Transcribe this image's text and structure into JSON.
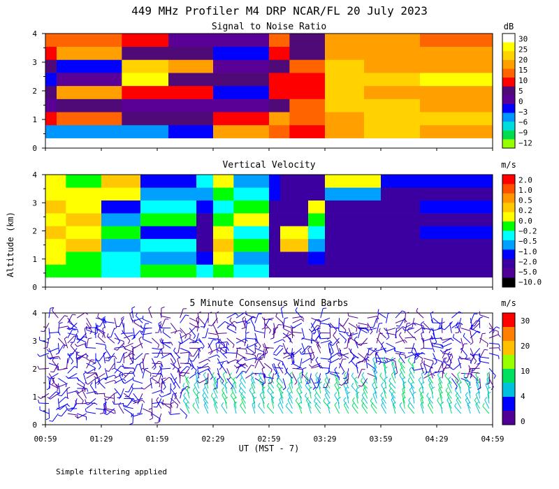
{
  "figure": {
    "title": "449 MHz Profiler M4 DRP NCAR/FL 20 July 2023",
    "ylabel": "Altitude (km)",
    "xlabel": "UT  (MST - 7)",
    "footnote": "Simple filtering applied",
    "time_ticks": [
      "00:59",
      "01:29",
      "01:59",
      "02:29",
      "02:59",
      "03:29",
      "03:59",
      "04:29",
      "04:59"
    ],
    "alt_ticks": [
      "0",
      "1",
      "2",
      "3",
      "4"
    ]
  },
  "chart_data": [
    {
      "type": "heatmap",
      "title": "Signal to Noise Ratio",
      "xlim": [
        "00:59",
        "04:59"
      ],
      "ylim": [
        0,
        4
      ],
      "colorbar": {
        "unit": "dB",
        "labels": [
          "30",
          "25",
          "20",
          "15",
          "10",
          "5",
          "0",
          "−3",
          "−6",
          "−9",
          "−12"
        ],
        "colors": [
          "#ffffff",
          "#ffff00",
          "#ffd200",
          "#ffa000",
          "#ff6400",
          "#ff0000",
          "#500a78",
          "#5a0096",
          "#0000ff",
          "#0096ff",
          "#00dcdc",
          "#00dc50",
          "#96ff00"
        ]
      },
      "bands": [
        {
          "from": "00:59",
          "to": "01:05",
          "levels": [
            9,
            5,
            7,
            6,
            8,
            6,
            5,
            4
          ]
        },
        {
          "from": "01:05",
          "to": "01:40",
          "levels": [
            9,
            4,
            6,
            3,
            7,
            8,
            3,
            4
          ]
        },
        {
          "from": "01:40",
          "to": "02:05",
          "levels": [
            9,
            6,
            7,
            5,
            1,
            2,
            6,
            5
          ]
        },
        {
          "from": "02:05",
          "to": "02:29",
          "levels": [
            8,
            6,
            7,
            5,
            6,
            3,
            6,
            7
          ]
        },
        {
          "from": "02:29",
          "to": "02:59",
          "levels": [
            3,
            5,
            7,
            8,
            6,
            7,
            8,
            7
          ]
        },
        {
          "from": "02:59",
          "to": "03:10",
          "levels": [
            4,
            3,
            6,
            5,
            5,
            6,
            5,
            4
          ]
        },
        {
          "from": "03:10",
          "to": "03:29",
          "levels": [
            5,
            4,
            4,
            5,
            5,
            4,
            6,
            6
          ]
        },
        {
          "from": "03:29",
          "to": "03:50",
          "levels": [
            3,
            3,
            2,
            2,
            2,
            2,
            3,
            3
          ]
        },
        {
          "from": "03:50",
          "to": "04:20",
          "levels": [
            2,
            2,
            2,
            3,
            2,
            3,
            3,
            3
          ]
        },
        {
          "from": "04:20",
          "to": "04:59",
          "levels": [
            3,
            2,
            3,
            3,
            1,
            3,
            3,
            4
          ]
        }
      ]
    },
    {
      "type": "heatmap",
      "title": "Vertical Velocity",
      "xlim": [
        "00:59",
        "04:59"
      ],
      "ylim": [
        0,
        4
      ],
      "colorbar": {
        "unit": "m/s",
        "labels": [
          "2.0",
          "1.0",
          "0.5",
          "0.2",
          "0.0",
          "−0.2",
          "−0.5",
          "−1.0",
          "−2.0",
          "−5.0",
          "−10.0"
        ],
        "colors": [
          "#ff0000",
          "#ff5000",
          "#ff9600",
          "#ffc800",
          "#ffff00",
          "#00ff00",
          "#00ffff",
          "#00a0ff",
          "#0000ff",
          "#3c00a0",
          "#500096",
          "#000000"
        ]
      },
      "bands": [
        {
          "from": "00:59",
          "to": "01:10",
          "levels": [
            5,
            4,
            4,
            3,
            4,
            3,
            4,
            4
          ]
        },
        {
          "from": "01:10",
          "to": "01:29",
          "levels": [
            5,
            5,
            3,
            4,
            3,
            4,
            4,
            5
          ]
        },
        {
          "from": "01:29",
          "to": "01:50",
          "levels": [
            6,
            6,
            7,
            5,
            7,
            8,
            4,
            3
          ]
        },
        {
          "from": "01:50",
          "to": "02:20",
          "levels": [
            5,
            7,
            6,
            8,
            5,
            6,
            7,
            8
          ]
        },
        {
          "from": "02:20",
          "to": "02:29",
          "levels": [
            6,
            8,
            9,
            9,
            9,
            8,
            7,
            6
          ]
        },
        {
          "from": "02:29",
          "to": "02:40",
          "levels": [
            5,
            4,
            3,
            4,
            5,
            6,
            5,
            4
          ]
        },
        {
          "from": "02:40",
          "to": "02:59",
          "levels": [
            6,
            7,
            5,
            6,
            4,
            5,
            6,
            7
          ]
        },
        {
          "from": "02:59",
          "to": "03:05",
          "levels": [
            9,
            9,
            9,
            9,
            9,
            9,
            8,
            8
          ]
        },
        {
          "from": "03:05",
          "to": "03:20",
          "levels": [
            9,
            9,
            3,
            4,
            9,
            9,
            9,
            9
          ]
        },
        {
          "from": "03:20",
          "to": "03:29",
          "levels": [
            9,
            8,
            7,
            6,
            5,
            4,
            9,
            9
          ]
        },
        {
          "from": "03:29",
          "to": "03:59",
          "levels": [
            9,
            9,
            9,
            9,
            9,
            9,
            7,
            4
          ]
        },
        {
          "from": "03:59",
          "to": "04:20",
          "levels": [
            9,
            9,
            9,
            9,
            9,
            9,
            9,
            8
          ]
        },
        {
          "from": "04:20",
          "to": "04:59",
          "levels": [
            9,
            9,
            9,
            8,
            9,
            8,
            9,
            8
          ]
        }
      ]
    },
    {
      "type": "scatter",
      "title": "5 Minute Consensus Wind Barbs",
      "xlim": [
        "00:59",
        "04:59"
      ],
      "ylim": [
        0,
        4
      ],
      "colorbar": {
        "unit": "m/s",
        "labels": [
          "30",
          "20",
          "10",
          "4",
          "0"
        ],
        "colors": [
          "#ff0000",
          "#ff8000",
          "#ffc000",
          "#96ff00",
          "#00e060",
          "#00c0e0",
          "#0000ff",
          "#500096"
        ]
      }
    }
  ]
}
